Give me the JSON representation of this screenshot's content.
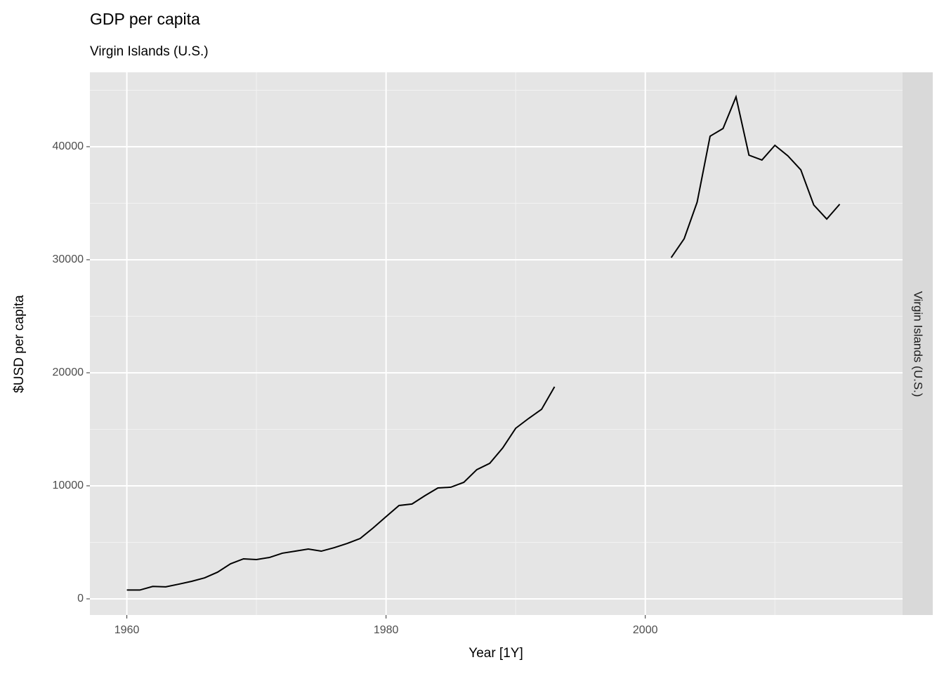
{
  "chart_data": {
    "type": "line",
    "title": "GDP per capita",
    "subtitle": "Virgin Islands (U.S.)",
    "xlabel": "Year [1Y]",
    "ylabel": "$USD per capita",
    "facet_label": "Virgin Islands (U.S.)",
    "x": [
      1960,
      1961,
      1962,
      1963,
      1964,
      1965,
      1966,
      1967,
      1968,
      1969,
      1970,
      1971,
      1972,
      1973,
      1974,
      1975,
      1976,
      1977,
      1978,
      1979,
      1980,
      1981,
      1982,
      1983,
      1984,
      1985,
      1986,
      1987,
      1988,
      1989,
      1990,
      1991,
      1992,
      1993,
      1994,
      1995,
      1996,
      1997,
      1998,
      1999,
      2000,
      2001,
      2002,
      2003,
      2004,
      2005,
      2006,
      2007,
      2008,
      2009,
      2010,
      2011,
      2012,
      2013,
      2014,
      2015
    ],
    "series": [
      {
        "name": "Virgin Islands (U.S.)",
        "color": "#000000",
        "values": [
          780,
          780,
          1100,
          1060,
          1300,
          1550,
          1860,
          2360,
          3100,
          3540,
          3480,
          3660,
          4040,
          4220,
          4410,
          4220,
          4530,
          4900,
          5340,
          6270,
          7270,
          8260,
          8390,
          9130,
          9810,
          9880,
          10310,
          11430,
          11990,
          13350,
          15090,
          15960,
          16770,
          18760,
          null,
          null,
          null,
          null,
          null,
          null,
          null,
          null,
          30190,
          31860,
          35090,
          40930,
          41610,
          44410,
          39250,
          38820,
          40120,
          39190,
          37950,
          34840,
          33600,
          34910
        ]
      }
    ],
    "xlim": [
      1957.15,
      2019.85
    ],
    "xticks": [
      1960,
      1980,
      2000
    ],
    "xminor": [
      1970,
      1990,
      2010
    ],
    "ylim": [
      -1430,
      46580
    ],
    "yticks": [
      0,
      10000,
      20000,
      30000,
      40000
    ],
    "yminor": [
      5000,
      15000,
      25000,
      35000,
      45000
    ],
    "grid": true
  }
}
